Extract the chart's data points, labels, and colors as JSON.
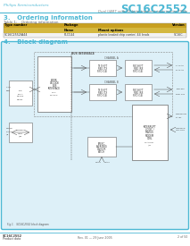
{
  "bg_color": "#ffffff",
  "header_text_left": "Philips Semiconductors",
  "header_text_right": "SC16C2552",
  "header_sub_right": "Dual UART with 32-byte transmit and receive FIFOs",
  "header_line_color": "#4db8d4",
  "section3_title": "3.   Ordering information",
  "table_label": "Table 1:    Ordering information",
  "table_header_bg": "#c8a83c",
  "table_row1_bg": "#c8a83c",
  "table_row2_bg": "#e8e0b8",
  "table_col1_header": "Type number",
  "table_col2a": "Name",
  "table_col2b": "Mount options",
  "table_col3_header": "Version",
  "table_row1_col1": "Package",
  "table_row2_col1": "SC16C2552IA44",
  "table_row2_col2a": "PLCC44",
  "table_row2_col2b": "plastic leaded chip carrier; 44 leads",
  "table_row2_col3": "SC16C...",
  "section4_title": "4.   Block diagram",
  "block_border_color": "#4db8d4",
  "block_bg_color": "#e0f4fa",
  "box_color": "#888888",
  "footer_left": "SC16C2552",
  "footer_mid": "Rev. 01 — 29 June 2005",
  "footer_right": "2 of 50",
  "footer_product": "Product data"
}
